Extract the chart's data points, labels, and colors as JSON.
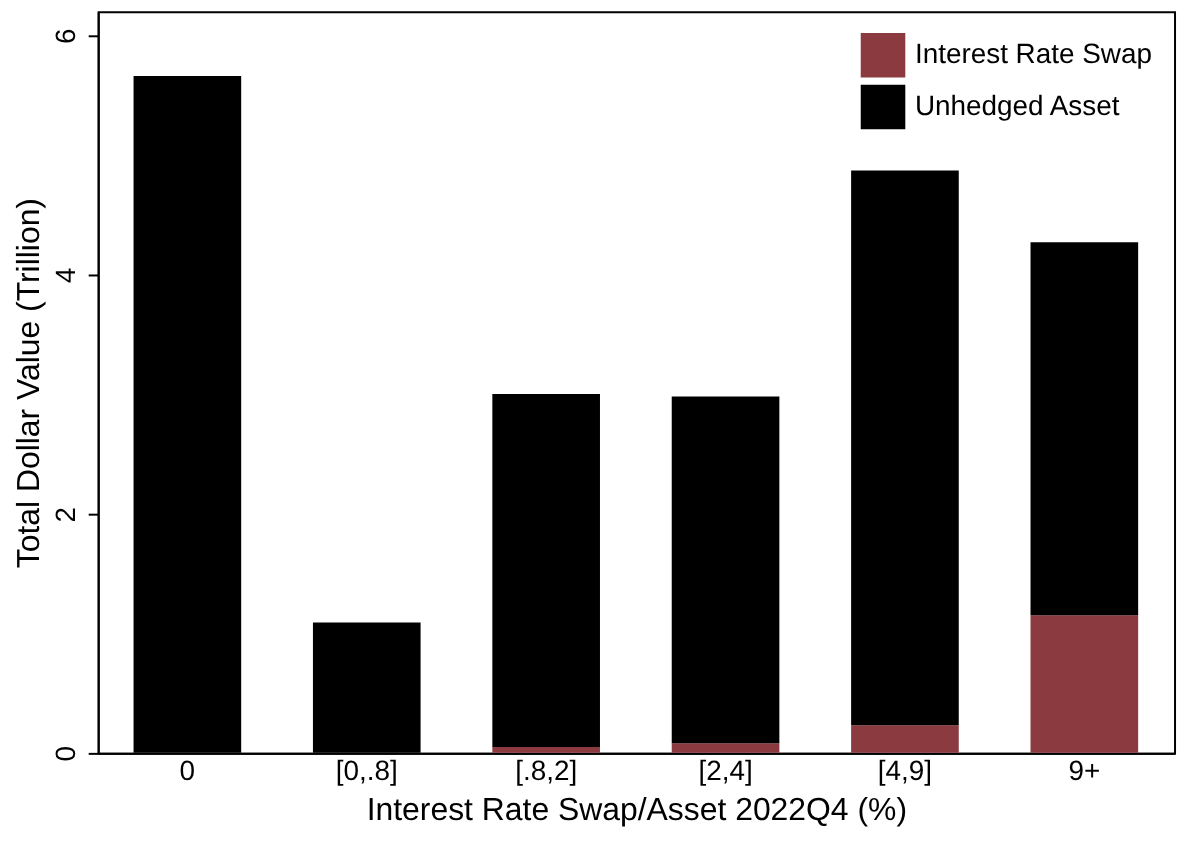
{
  "chart_data": {
    "type": "bar",
    "stacked": true,
    "xlabel": "Interest Rate Swap/Asset 2022Q4 (%)",
    "ylabel": "Total Dollar Value (Trillion)",
    "categories": [
      "0",
      "[0,.8]",
      "[.8,2]",
      "[2,4]",
      "[4,9]",
      "9+"
    ],
    "series": [
      {
        "name": "Interest Rate Swap",
        "color": "#8b3a3f",
        "values": [
          0,
          0,
          0.05,
          0.08,
          0.23,
          1.15
        ]
      },
      {
        "name": "Unhedged Asset",
        "color": "#000000",
        "values": [
          5.66,
          1.09,
          2.95,
          2.9,
          4.64,
          3.12
        ]
      }
    ],
    "ylim": [
      0,
      6.2
    ],
    "yticks": [
      0,
      2,
      4,
      6
    ],
    "grid": false,
    "legend": "top right"
  }
}
